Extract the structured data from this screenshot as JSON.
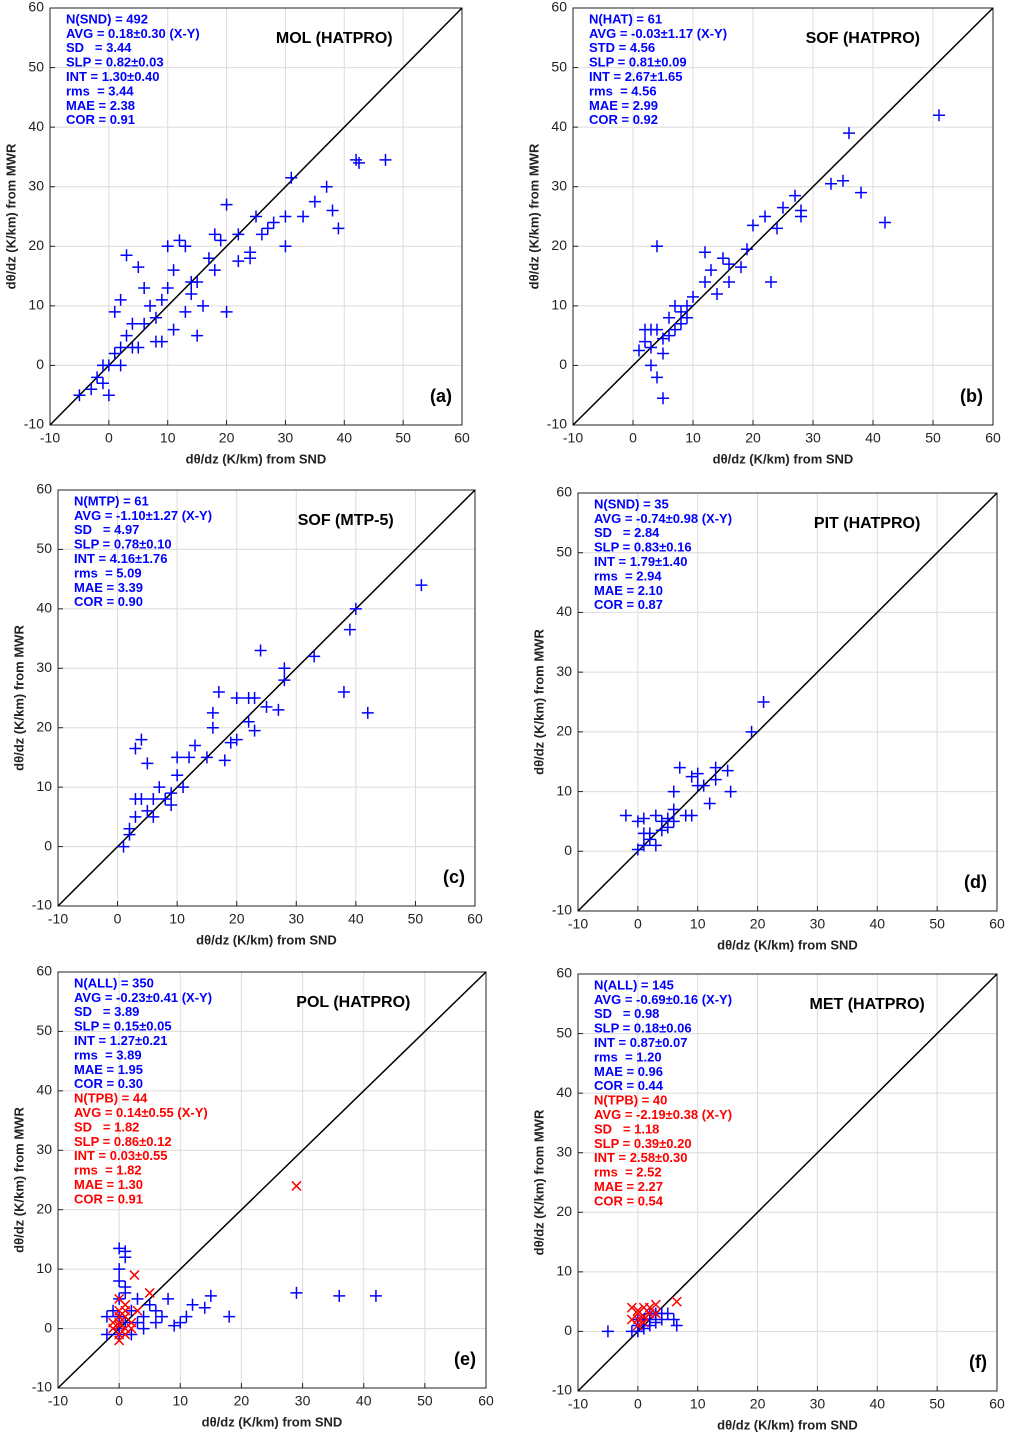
{
  "chart_data": [
    {
      "type": "scatter",
      "title": "MOL (HATPRO)",
      "panel_label": "(a)",
      "xlabel": "dθ/dz (K/km) from SND",
      "ylabel": "dθ/dz (K/km) from MWR",
      "xlim": [
        -10,
        60
      ],
      "ylim": [
        -10,
        60
      ],
      "xticks": [
        -10,
        0,
        10,
        20,
        30,
        40,
        50,
        60
      ],
      "yticks": [
        -10,
        0,
        10,
        20,
        30,
        40,
        50,
        60
      ],
      "grid": true,
      "annotations": [
        {
          "color": "#0000ff",
          "lines": [
            "N(SND) = 492",
            "AVG = 0.18±0.30 (X-Y)",
            "SD   = 3.44",
            "SLP = 0.82±0.03",
            "INT = 1.30±0.40",
            "rms  = 3.44",
            "MAE = 2.38",
            "COR = 0.91"
          ]
        }
      ],
      "series": [
        {
          "color": "#0000ff",
          "marker": "+",
          "x": [
            47,
            42,
            42.5,
            39,
            38,
            37,
            35,
            33,
            31,
            30,
            30,
            28,
            27,
            25,
            24,
            22,
            20,
            19,
            18,
            17,
            16,
            15,
            14,
            13,
            12,
            11,
            10,
            9,
            8,
            7,
            6,
            5,
            4,
            3,
            3,
            2,
            1,
            0,
            -1,
            -2,
            -3,
            -5,
            0,
            1,
            2,
            5,
            8,
            11,
            15,
            20,
            24,
            26,
            13,
            10,
            6,
            4,
            2,
            -1,
            14,
            18,
            22,
            9
          ],
          "values": [
            34.5,
            34.5,
            34,
            23,
            26,
            30,
            27.5,
            25,
            31.5,
            20,
            25,
            24,
            23,
            25,
            19,
            17.5,
            27,
            21,
            22,
            18,
            10,
            14,
            12,
            9,
            21,
            16,
            13,
            11,
            8,
            10,
            13,
            16.5,
            7,
            18.5,
            5,
            3,
            2,
            0,
            -3,
            -2,
            -4,
            -5,
            -5,
            9,
            11,
            3,
            4,
            6,
            5,
            9,
            18,
            22,
            20,
            20,
            7,
            3,
            0,
            0,
            14,
            16,
            22,
            4
          ]
        }
      ]
    },
    {
      "type": "scatter",
      "title": "SOF (HATPRO)",
      "panel_label": "(b)",
      "xlabel": "dθ/dz (K/km) from SND",
      "ylabel": "dθ/dz (K/km) from MWR",
      "xlim": [
        -10,
        60
      ],
      "ylim": [
        -10,
        60
      ],
      "xticks": [
        -10,
        0,
        10,
        20,
        30,
        40,
        50,
        60
      ],
      "yticks": [
        -10,
        0,
        10,
        20,
        30,
        40,
        50,
        60
      ],
      "grid": true,
      "annotations": [
        {
          "color": "#0000ff",
          "lines": [
            "N(HAT) = 61",
            "AVG = -0.03±1.17 (X-Y)",
            "STD = 4.56",
            "SLP = 0.81±0.09",
            "INT = 2.67±1.65",
            "rms  = 4.56",
            "MAE = 2.99",
            "COR = 0.92"
          ]
        }
      ],
      "series": [
        {
          "color": "#0000ff",
          "marker": "+",
          "x": [
            51,
            36,
            35,
            33,
            38,
            42,
            27,
            28,
            28,
            25,
            24,
            22,
            20,
            19,
            18,
            16,
            15,
            16,
            13,
            14,
            12,
            10,
            9,
            8,
            8,
            7,
            7,
            6,
            5,
            4,
            4,
            3,
            3,
            2,
            3,
            4,
            5,
            1,
            2,
            5,
            6,
            23,
            9,
            12
          ],
          "values": [
            42,
            39,
            31,
            30.5,
            29,
            24,
            28.5,
            26,
            25,
            26.5,
            23,
            25,
            23.5,
            19.5,
            16.5,
            17,
            18,
            14,
            16,
            12,
            19,
            11.5,
            10,
            9,
            7,
            10,
            6,
            8,
            4.5,
            20,
            6,
            6,
            3,
            6,
            0,
            -2,
            -5.5,
            2.5,
            4,
            2,
            5,
            14,
            8,
            14
          ]
        }
      ]
    },
    {
      "type": "scatter",
      "title": "SOF (MTP-5)",
      "panel_label": "(c)",
      "xlabel": "dθ/dz (K/km) from SND",
      "ylabel": "dθ/dz (K/km) from MWR",
      "xlim": [
        -10,
        60
      ],
      "ylim": [
        -10,
        60
      ],
      "xticks": [
        -10,
        0,
        10,
        20,
        30,
        40,
        50,
        60
      ],
      "yticks": [
        -10,
        0,
        10,
        20,
        30,
        40,
        50,
        60
      ],
      "grid": true,
      "annotations": [
        {
          "color": "#0000ff",
          "lines": [
            "N(MTP) = 61",
            "AVG = -1.10±1.27 (X-Y)",
            "SD   = 4.97",
            "SLP = 0.78±0.10",
            "INT = 4.16±1.76",
            "rms  = 5.09",
            "MAE = 3.39",
            "COR = 0.90"
          ]
        }
      ],
      "series": [
        {
          "color": "#0000ff",
          "marker": "+",
          "x": [
            51,
            40,
            39,
            38,
            42,
            33,
            28,
            28,
            27,
            25,
            24,
            23,
            22,
            22,
            23,
            20,
            19,
            20,
            17,
            16,
            16,
            18,
            15,
            13,
            12,
            10,
            10,
            9,
            8,
            7,
            6,
            5,
            4,
            3,
            4,
            3,
            3,
            2,
            1,
            2,
            6,
            9,
            5,
            11
          ],
          "values": [
            44,
            40,
            36.5,
            26,
            22.5,
            32,
            30,
            28,
            23,
            23.5,
            33,
            25,
            25,
            21,
            19.5,
            25,
            17.5,
            18,
            26,
            22.5,
            20,
            14.5,
            15,
            17,
            15,
            15,
            12,
            9,
            8,
            10,
            8,
            14,
            18,
            16.5,
            8,
            8,
            5,
            3,
            0,
            2,
            5,
            7,
            6,
            10
          ]
        }
      ]
    },
    {
      "type": "scatter",
      "title": "PIT (HATPRO)",
      "panel_label": "(d)",
      "xlabel": "dθ/dz (K/km) from SND",
      "ylabel": "dθ/dz (K/km) from MWR",
      "xlim": [
        -10,
        60
      ],
      "ylim": [
        -10,
        60
      ],
      "xticks": [
        -10,
        0,
        10,
        20,
        30,
        40,
        50,
        60
      ],
      "yticks": [
        -10,
        0,
        10,
        20,
        30,
        40,
        50,
        60
      ],
      "grid": true,
      "annotations": [
        {
          "color": "#0000ff",
          "lines": [
            "N(SND) = 35",
            "AVG = -0.74±0.98 (X-Y)",
            "SD   = 2.84",
            "SLP = 0.83±0.16",
            "INT = 1.79±1.40",
            "rms  = 2.94",
            "MAE = 2.10",
            "COR = 0.87"
          ]
        }
      ],
      "series": [
        {
          "color": "#0000ff",
          "marker": "+",
          "x": [
            21,
            19,
            15,
            15.5,
            13,
            13,
            11,
            12,
            10,
            9,
            9,
            8,
            7,
            6,
            6,
            5,
            4,
            3,
            2,
            1,
            1,
            0,
            0,
            -2,
            2,
            4,
            3,
            5,
            6,
            10,
            1
          ],
          "values": [
            25,
            20,
            13.5,
            10,
            14,
            12,
            11,
            8,
            13,
            12.5,
            6,
            6,
            14,
            7,
            5,
            4,
            5,
            6,
            3,
            3,
            1,
            5,
            0.3,
            6,
            2,
            3.5,
            1,
            5.5,
            10,
            11,
            5.5
          ]
        }
      ]
    },
    {
      "type": "scatter",
      "title": "POL (HATPRO)",
      "panel_label": "(e)",
      "xlabel": "dθ/dz (K/km) from SND",
      "ylabel": "dθ/dz (K/km) from MWR",
      "xlim": [
        -10,
        60
      ],
      "ylim": [
        -10,
        60
      ],
      "xticks": [
        -10,
        0,
        10,
        20,
        30,
        40,
        50,
        60
      ],
      "yticks": [
        -10,
        0,
        10,
        20,
        30,
        40,
        50,
        60
      ],
      "grid": true,
      "annotations": [
        {
          "color": "#0000ff",
          "lines": [
            "N(ALL) = 350",
            "AVG = -0.23±0.41 (X-Y)",
            "SD   = 3.89",
            "SLP = 0.15±0.05",
            "INT = 1.27±0.21",
            "rms  = 3.89",
            "MAE = 1.95",
            "COR = 0.30"
          ]
        },
        {
          "color": "#ff0000",
          "lines": [
            "N(TPB) = 44",
            "AVG = 0.14±0.55 (X-Y)",
            "SD   = 1.82",
            "SLP = 0.86±0.12",
            "INT = 0.03±0.55",
            "rms  = 1.82",
            "MAE = 1.30",
            "COR = 0.91"
          ]
        }
      ],
      "series": [
        {
          "color": "#0000ff",
          "marker": "+",
          "x": [
            42,
            36,
            29,
            18,
            15,
            14,
            12,
            11,
            10,
            9,
            8,
            6,
            5,
            4,
            3,
            2,
            1,
            0,
            1,
            0,
            0,
            1,
            -1,
            -2,
            0,
            1,
            2,
            3,
            4,
            0,
            0,
            6,
            -2,
            7,
            1,
            0
          ],
          "values": [
            5.5,
            5.5,
            6,
            2,
            5.5,
            3.5,
            4,
            2,
            1,
            0.5,
            5,
            3,
            4,
            2,
            5,
            3,
            13,
            13.5,
            12,
            10,
            8,
            7,
            3,
            2,
            0,
            1,
            -1,
            1,
            0,
            -1,
            5,
            1,
            -1,
            2,
            6,
            2
          ]
        },
        {
          "color": "#ff0000",
          "marker": "x",
          "x": [
            29,
            2.5,
            5,
            1,
            0,
            0,
            1,
            0,
            0,
            -1,
            1,
            2,
            3,
            0,
            -1,
            0,
            1,
            2,
            0,
            1
          ],
          "values": [
            24,
            9,
            6,
            4,
            3,
            1,
            0,
            -1,
            -2,
            0,
            2,
            1,
            3,
            2,
            1,
            0.5,
            -1,
            0,
            5,
            3
          ]
        }
      ]
    },
    {
      "type": "scatter",
      "title": "MET (HATPRO)",
      "panel_label": "(f)",
      "xlabel": "dθ/dz (K/km) from SND",
      "ylabel": "dθ/dz (K/km) from MWR",
      "xlim": [
        -10,
        60
      ],
      "ylim": [
        -10,
        60
      ],
      "xticks": [
        -10,
        0,
        10,
        20,
        30,
        40,
        50,
        60
      ],
      "yticks": [
        -10,
        0,
        10,
        20,
        30,
        40,
        50,
        60
      ],
      "grid": true,
      "annotations": [
        {
          "color": "#0000ff",
          "lines": [
            "N(ALL) = 145",
            "AVG = -0.69±0.16 (X-Y)",
            "SD   = 0.98",
            "SLP = 0.18±0.06",
            "INT = 0.87±0.07",
            "rms  = 1.20",
            "MAE = 0.96",
            "COR = 0.44"
          ]
        },
        {
          "color": "#ff0000",
          "lines": [
            "N(TPB) = 40",
            "AVG = -2.19±0.38 (X-Y)",
            "SD   = 1.18",
            "SLP = 0.39±0.20",
            "INT = 2.58±0.30",
            "rms  = 2.52",
            "MAE = 2.27",
            "COR = 0.54"
          ]
        }
      ],
      "series": [
        {
          "color": "#0000ff",
          "marker": "+",
          "x": [
            -5,
            6,
            6.5,
            3,
            2,
            1,
            0,
            1,
            2,
            3,
            4,
            0,
            -1,
            1,
            5,
            0,
            4,
            2
          ],
          "values": [
            0,
            2,
            1,
            3,
            2,
            1,
            0,
            2,
            1,
            1.5,
            2,
            1,
            0,
            0.5,
            3,
            2,
            3,
            3
          ]
        },
        {
          "color": "#ff0000",
          "marker": "x",
          "x": [
            6.5,
            3,
            2,
            1,
            0,
            0,
            -1,
            1,
            2,
            0,
            -1,
            1,
            0,
            3
          ],
          "values": [
            5,
            4.5,
            4,
            4,
            3.5,
            3,
            2,
            2.5,
            3,
            1,
            4,
            1.5,
            2,
            3
          ]
        }
      ]
    }
  ]
}
